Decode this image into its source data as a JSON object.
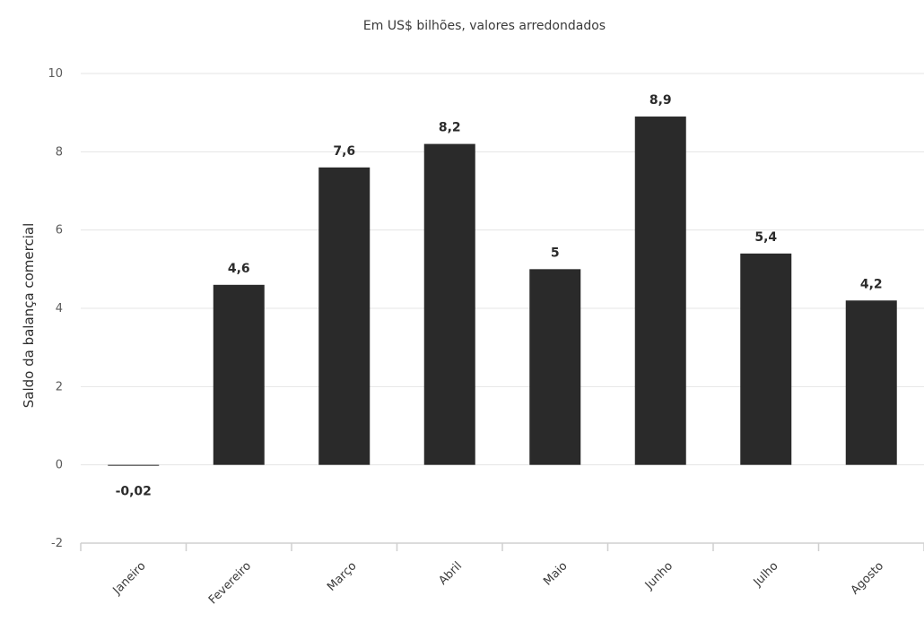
{
  "chart_data": {
    "type": "bar",
    "subtitle": "Em US$ bilhões, valores arredondados",
    "ylabel": "Saldo da balança comercial",
    "xlabel": "",
    "categories": [
      "Janeiro",
      "Fevereiro",
      "Março",
      "Abril",
      "Maio",
      "Junho",
      "Julho",
      "Agosto"
    ],
    "values": [
      -0.02,
      4.6,
      7.6,
      8.2,
      5,
      8.9,
      5.4,
      4.2
    ],
    "value_labels": [
      "-0,02",
      "4,6",
      "7,6",
      "8,2",
      "5",
      "8,9",
      "5,4",
      "4,2"
    ],
    "yticks": [
      -2,
      0,
      2,
      4,
      6,
      8,
      10
    ],
    "ylim": [
      -2,
      10
    ],
    "grid": true,
    "legend": "none",
    "colors": {
      "bar": "#2a2a2a",
      "grid": "#e4e4e4",
      "axis": "#cfcfcf"
    }
  }
}
